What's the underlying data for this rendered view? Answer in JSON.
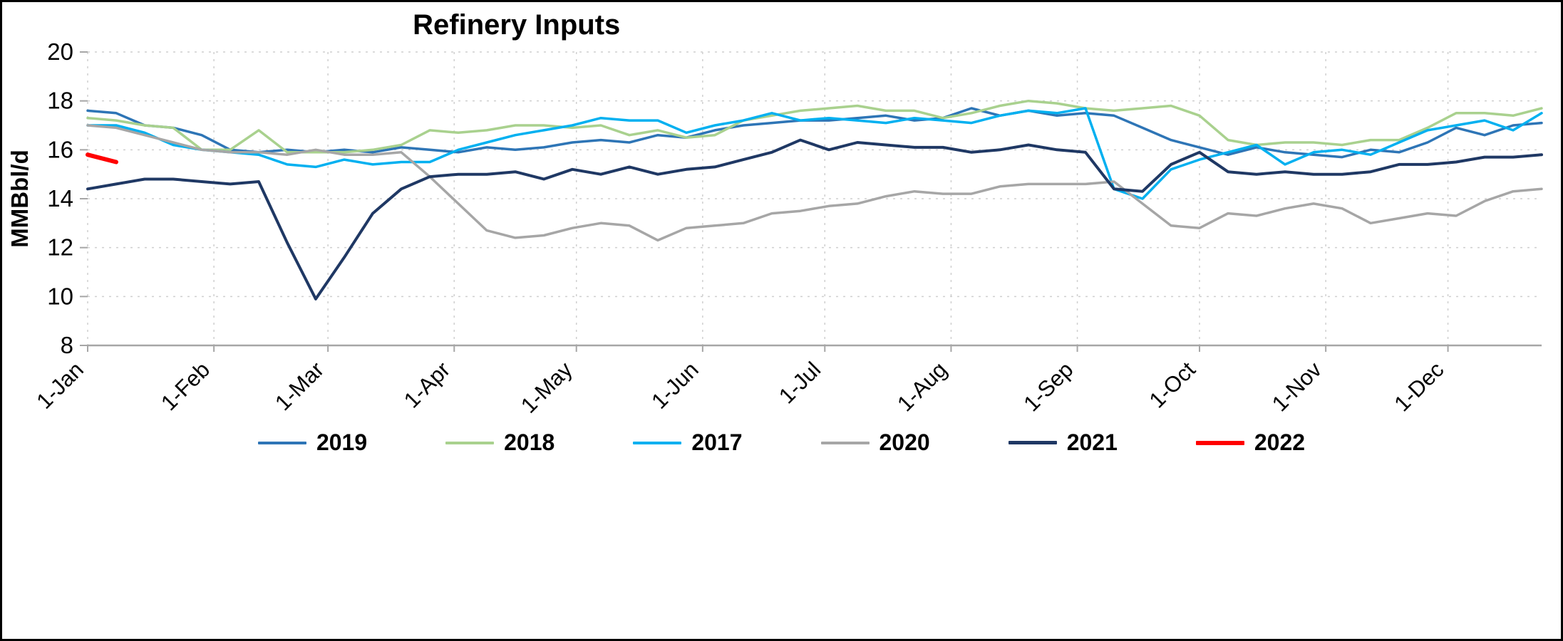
{
  "chart_data": {
    "type": "line",
    "title": "Refinery Inputs",
    "ylabel": "MMBbl/d",
    "ylim": [
      8,
      20
    ],
    "yticks": [
      8,
      10,
      12,
      14,
      16,
      18,
      20
    ],
    "grid": true,
    "grid_color": "#CFCFCF",
    "axis_color": "#A6A6A6",
    "legend_position": "bottom",
    "x_unit": "weekly observations, x_day = week_index * 7",
    "x_step_days": 7,
    "x_max_day": 357,
    "month_ticks": [
      {
        "label": "1-Jan",
        "day": 0
      },
      {
        "label": "1-Feb",
        "day": 31
      },
      {
        "label": "1-Mar",
        "day": 59
      },
      {
        "label": "1-Apr",
        "day": 90
      },
      {
        "label": "1-May",
        "day": 120
      },
      {
        "label": "1-Jun",
        "day": 151
      },
      {
        "label": "1-Jul",
        "day": 181
      },
      {
        "label": "1-Aug",
        "day": 212
      },
      {
        "label": "1-Sep",
        "day": 243
      },
      {
        "label": "1-Oct",
        "day": 273
      },
      {
        "label": "1-Nov",
        "day": 304
      },
      {
        "label": "1-Dec",
        "day": 334
      }
    ],
    "series": [
      {
        "name": "2019",
        "color": "#2E75B6",
        "width": 3.5,
        "values": [
          17.6,
          17.5,
          17.0,
          16.9,
          16.6,
          16.0,
          15.9,
          16.0,
          15.9,
          16.0,
          15.9,
          16.1,
          16.0,
          15.9,
          16.1,
          16.0,
          16.1,
          16.3,
          16.4,
          16.3,
          16.6,
          16.5,
          16.8,
          17.0,
          17.1,
          17.2,
          17.2,
          17.3,
          17.4,
          17.2,
          17.3,
          17.7,
          17.4,
          17.6,
          17.4,
          17.5,
          17.4,
          16.9,
          16.4,
          16.1,
          15.8,
          16.1,
          15.9,
          15.8,
          15.7,
          16.0,
          15.9,
          16.3,
          16.9,
          16.6,
          17.0,
          17.1
        ]
      },
      {
        "name": "2018",
        "color": "#A9D18E",
        "width": 3.5,
        "values": [
          17.3,
          17.2,
          17.0,
          16.9,
          16.0,
          16.0,
          16.8,
          15.9,
          15.9,
          15.9,
          16.0,
          16.2,
          16.8,
          16.7,
          16.8,
          17.0,
          17.0,
          16.9,
          17.0,
          16.6,
          16.8,
          16.5,
          16.6,
          17.2,
          17.4,
          17.6,
          17.7,
          17.8,
          17.6,
          17.6,
          17.3,
          17.5,
          17.8,
          18.0,
          17.9,
          17.7,
          17.6,
          17.7,
          17.8,
          17.4,
          16.4,
          16.2,
          16.3,
          16.3,
          16.2,
          16.4,
          16.4,
          16.9,
          17.5,
          17.5,
          17.4,
          17.7
        ]
      },
      {
        "name": "2017",
        "color": "#00B0F0",
        "width": 3.5,
        "values": [
          17.0,
          17.0,
          16.7,
          16.2,
          16.0,
          15.9,
          15.8,
          15.4,
          15.3,
          15.6,
          15.4,
          15.5,
          15.5,
          16.0,
          16.3,
          16.6,
          16.8,
          17.0,
          17.3,
          17.2,
          17.2,
          16.7,
          17.0,
          17.2,
          17.5,
          17.2,
          17.3,
          17.2,
          17.1,
          17.3,
          17.2,
          17.1,
          17.4,
          17.6,
          17.5,
          17.7,
          14.4,
          14.0,
          15.2,
          15.6,
          15.9,
          16.2,
          15.4,
          15.9,
          16.0,
          15.8,
          16.3,
          16.8,
          17.0,
          17.2,
          16.8,
          17.5
        ]
      },
      {
        "name": "2020",
        "color": "#A6A6A6",
        "width": 3.5,
        "values": [
          17.0,
          16.9,
          16.6,
          16.3,
          16.0,
          15.9,
          15.9,
          15.8,
          16.0,
          15.8,
          15.8,
          15.9,
          14.9,
          13.8,
          12.7,
          12.4,
          12.5,
          12.8,
          13.0,
          12.9,
          12.3,
          12.8,
          12.9,
          13.0,
          13.4,
          13.5,
          13.7,
          13.8,
          14.1,
          14.3,
          14.2,
          14.2,
          14.5,
          14.6,
          14.6,
          14.6,
          14.7,
          13.8,
          12.9,
          12.8,
          13.4,
          13.3,
          13.6,
          13.8,
          13.6,
          13.0,
          13.2,
          13.4,
          13.3,
          13.9,
          14.3,
          14.4
        ]
      },
      {
        "name": "2021",
        "color": "#1F3864",
        "width": 4,
        "values": [
          14.4,
          14.6,
          14.8,
          14.8,
          14.7,
          14.6,
          14.7,
          12.2,
          9.9,
          11.6,
          13.4,
          14.4,
          14.9,
          15.0,
          15.0,
          15.1,
          14.8,
          15.2,
          15.0,
          15.3,
          15.0,
          15.2,
          15.3,
          15.6,
          15.9,
          16.4,
          16.0,
          16.3,
          16.2,
          16.1,
          16.1,
          15.9,
          16.0,
          16.2,
          16.0,
          15.9,
          14.4,
          14.3,
          15.4,
          15.9,
          15.1,
          15.0,
          15.1,
          15.0,
          15.0,
          15.1,
          15.4,
          15.4,
          15.5,
          15.7,
          15.7,
          15.8
        ]
      },
      {
        "name": "2022",
        "color": "#FF0000",
        "width": 6,
        "values": [
          15.8,
          15.5
        ]
      }
    ]
  }
}
